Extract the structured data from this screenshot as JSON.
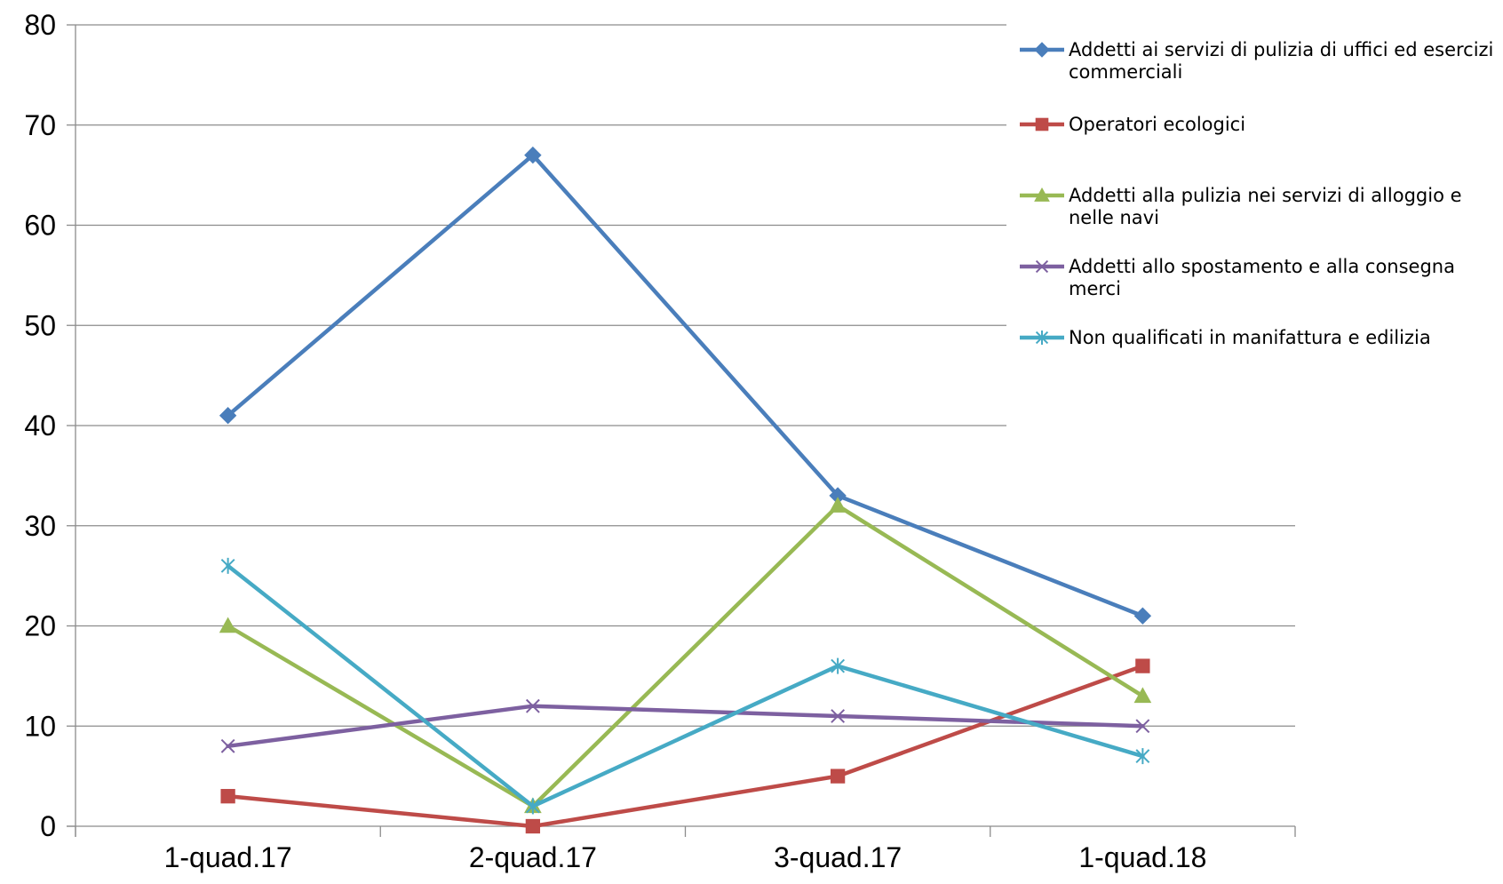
{
  "chart_data": {
    "type": "line",
    "title": "",
    "xlabel": "",
    "ylabel": "",
    "categories": [
      "1-quad.17",
      "2-quad.17",
      "3-quad.17",
      "1-quad.18"
    ],
    "ylim": [
      0,
      80
    ],
    "yticks": [
      0,
      10,
      20,
      30,
      40,
      50,
      60,
      70,
      80
    ],
    "grid": "horizontal",
    "legend_position": "right",
    "series": [
      {
        "name": "Addetti ai servizi di pulizia di uffici ed esercizi commerciali",
        "legend_lines": [
          "Addetti ai servizi di pulizia di uffici ed esercizi",
          "commerciali"
        ],
        "values": [
          41,
          67,
          33,
          21
        ],
        "color": "#4A7EBB",
        "marker": "diamond"
      },
      {
        "name": "Operatori ecologici",
        "legend_lines": [
          "Operatori ecologici"
        ],
        "values": [
          3,
          0,
          5,
          16
        ],
        "color": "#BE4B48",
        "marker": "square"
      },
      {
        "name": "Addetti alla pulizia nei servizi di alloggio e nelle navi",
        "legend_lines": [
          "Addetti alla pulizia nei servizi di alloggio e",
          "nelle navi"
        ],
        "values": [
          20,
          2,
          32,
          13
        ],
        "color": "#98B954",
        "marker": "triangle"
      },
      {
        "name": "Addetti allo spostamento e alla consegna merci",
        "legend_lines": [
          "Addetti allo spostamento e alla consegna",
          "merci"
        ],
        "values": [
          8,
          12,
          11,
          10
        ],
        "color": "#7D60A0",
        "marker": "x"
      },
      {
        "name": "Non qualificati in manifattura e edilizia",
        "legend_lines": [
          "Non qualificati in manifattura e edilizia"
        ],
        "values": [
          26,
          2,
          16,
          7
        ],
        "color": "#46AAC5",
        "marker": "star"
      }
    ]
  }
}
